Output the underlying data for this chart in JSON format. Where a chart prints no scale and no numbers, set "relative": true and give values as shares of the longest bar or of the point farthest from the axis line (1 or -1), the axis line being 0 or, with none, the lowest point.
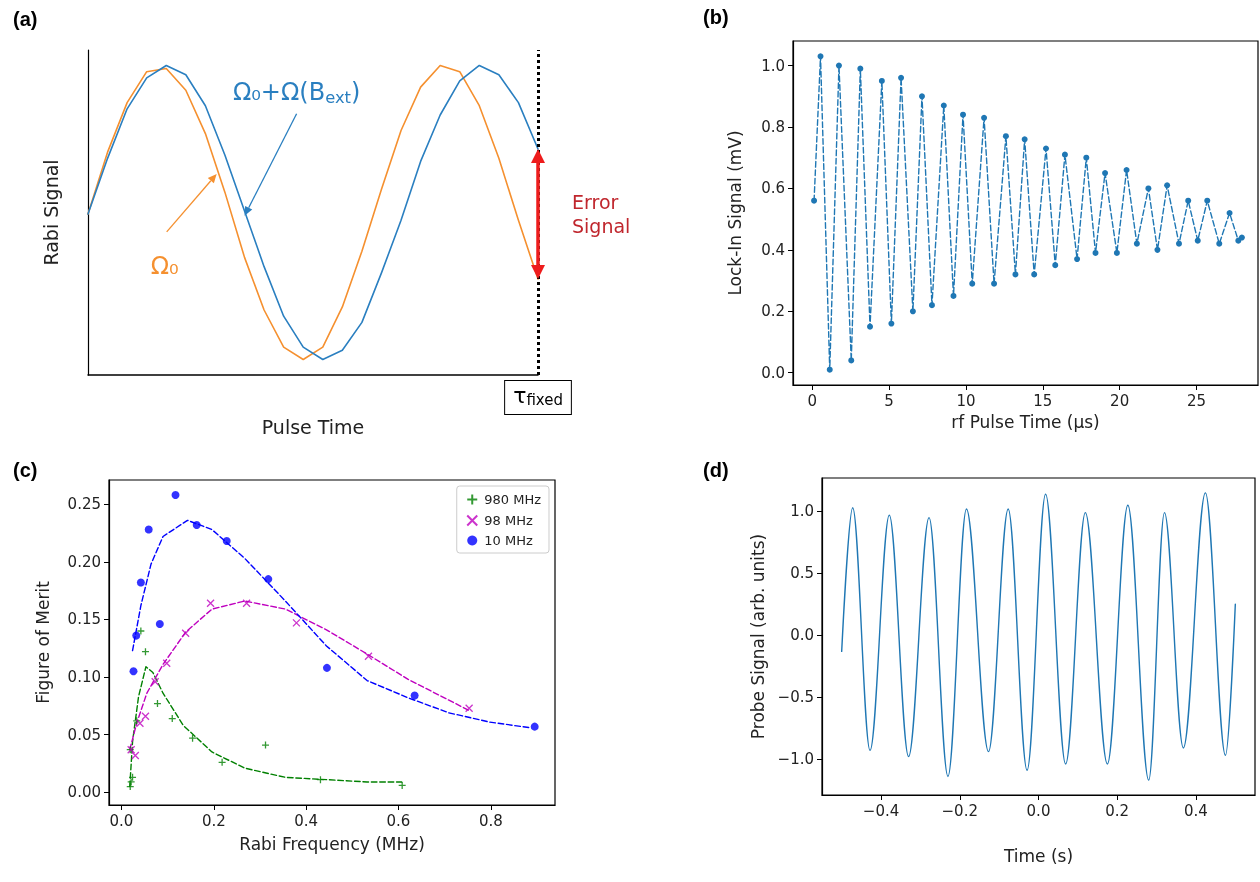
{
  "chart_data": [
    {
      "type": "line",
      "title": "(a)",
      "xlabel": "Pulse Time",
      "ylabel": "Rabi Signal",
      "relative": true,
      "grid": false,
      "marker": "none",
      "line_style": "solid",
      "categories": [
        null,
        null,
        null,
        null,
        null,
        null,
        null,
        null,
        null,
        null,
        null,
        null,
        null,
        null,
        null,
        null,
        null,
        null,
        null,
        null,
        null,
        null,
        null,
        null
      ],
      "series": [
        {
          "color": "#f5902f",
          "values": [
            0.52,
            0.72,
            0.88,
            0.98,
            0.99,
            0.92,
            0.78,
            0.59,
            0.38,
            0.21,
            0.09,
            0.05,
            0.09,
            0.22,
            0.4,
            0.6,
            0.79,
            0.93,
            1.0,
            0.98,
            0.87,
            0.7,
            0.5,
            0.31
          ]
        },
        {
          "color": "#2a7fc0",
          "values": [
            0.52,
            0.7,
            0.86,
            0.96,
            1.0,
            0.97,
            0.87,
            0.71,
            0.53,
            0.35,
            0.19,
            0.09,
            0.05,
            0.08,
            0.17,
            0.33,
            0.5,
            0.69,
            0.84,
            0.95,
            1.0,
            0.97,
            0.88,
            0.73
          ]
        }
      ],
      "ref_lines": [
        {
          "axis": "x",
          "label": "τ$_{fixed}$",
          "color": "#000000",
          "line_style": "dotted"
        }
      ],
      "annotations": [
        "Ω₀",
        "Ω₀+Ω(B$_{ext}$)",
        "Error Signal"
      ]
    },
    {
      "type": "line",
      "title": "(b)",
      "xlabel": "rf Pulse Time (μs)",
      "ylabel": "Lock-In Signal (mV)",
      "grid": false,
      "marker": "circle",
      "line_style": "dashed",
      "xlim": [
        -1.25,
        29
      ],
      "xticks": [
        0,
        5,
        10,
        15,
        20,
        25
      ],
      "ylim": [
        -0.04,
        1.08
      ],
      "yticks": [
        {
          "value": 0,
          "label": "0.0"
        },
        0.2,
        0.4,
        0.6,
        0.8,
        {
          "value": 1,
          "label": "1.0"
        }
      ],
      "x": [
        0.12,
        0.54,
        1.14,
        1.74,
        2.54,
        3.13,
        3.76,
        4.53,
        5.15,
        5.78,
        6.55,
        7.14,
        7.79,
        8.56,
        9.19,
        9.81,
        10.41,
        11.18,
        11.83,
        12.6,
        13.22,
        13.82,
        14.44,
        15.21,
        15.81,
        16.44,
        17.23,
        17.83,
        18.43,
        19.05,
        19.82,
        20.45,
        21.12,
        21.87,
        22.46,
        23.09,
        23.86,
        24.46,
        25.08,
        25.7,
        26.48,
        27.15,
        27.72,
        27.95
      ],
      "series": [
        {
          "color": "#1f77b4",
          "values": [
            0.56,
            1.03,
            0.01,
            1.0,
            0.04,
            0.99,
            0.15,
            0.95,
            0.16,
            0.96,
            0.2,
            0.9,
            0.22,
            0.87,
            0.25,
            0.84,
            0.29,
            0.83,
            0.29,
            0.77,
            0.32,
            0.76,
            0.32,
            0.73,
            0.35,
            0.71,
            0.37,
            0.7,
            0.39,
            0.65,
            0.39,
            0.66,
            0.42,
            0.6,
            0.4,
            0.61,
            0.42,
            0.56,
            0.43,
            0.56,
            0.42,
            0.52,
            0.43,
            0.44
          ]
        }
      ]
    },
    {
      "type": "scatter",
      "title": "(c)",
      "xlabel": "Rabi Frequency (MHz)",
      "ylabel": "Figure of Merit",
      "grid": false,
      "legend": "top right",
      "xlim": [
        -0.027,
        0.939
      ],
      "xticks": [
        {
          "value": 0,
          "label": "0.0"
        },
        0.2,
        0.4,
        0.6,
        0.8
      ],
      "ylim": [
        -0.011,
        0.271
      ],
      "yticks": [
        {
          "value": 0,
          "label": "0.00"
        },
        0.05,
        {
          "value": 0.1,
          "label": "0.10"
        },
        0.15,
        {
          "value": 0.2,
          "label": "0.20"
        },
        0.25
      ],
      "series": [
        {
          "name": "980 MHz",
          "color": "#008000",
          "marker": "cross",
          "x": [
            0.019,
            0.021,
            0.024,
            0.019,
            0.033,
            0.042,
            0.052,
            0.078,
            0.11,
            0.154,
            0.218,
            0.312,
            0.431,
            0.608
          ],
          "values": [
            0.005,
            0.009,
            0.013,
            0.037,
            0.062,
            0.14,
            0.122,
            0.077,
            0.064,
            0.047,
            0.026,
            0.041,
            0.011,
            0.006
          ]
        },
        {
          "name": "98 MHz",
          "color": "#bf00bf",
          "marker": "x",
          "x": [
            0.021,
            0.03,
            0.04,
            0.052,
            0.073,
            0.098,
            0.139,
            0.193,
            0.271,
            0.379,
            0.535,
            0.753
          ],
          "values": [
            0.037,
            0.032,
            0.06,
            0.066,
            0.096,
            0.112,
            0.138,
            0.164,
            0.164,
            0.147,
            0.118,
            0.073
          ]
        },
        {
          "name": "10 MHz",
          "color": "#0000ff",
          "marker": "circle",
          "x": [
            0.026,
            0.032,
            0.042,
            0.059,
            0.083,
            0.117,
            0.163,
            0.228,
            0.318,
            0.445,
            0.635,
            0.895
          ],
          "values": [
            0.105,
            0.136,
            0.182,
            0.228,
            0.146,
            0.258,
            0.232,
            0.218,
            0.185,
            0.108,
            0.084,
            0.057
          ]
        },
        {
          "type": "line",
          "color": "#008000",
          "marker": "none",
          "line_style": "dashed",
          "x": [
            0.018,
            0.024,
            0.037,
            0.053,
            0.068,
            0.09,
            0.134,
            0.196,
            0.267,
            0.355,
            0.444,
            0.532,
            0.607
          ],
          "values": [
            0.005,
            0.044,
            0.083,
            0.109,
            0.104,
            0.086,
            0.058,
            0.035,
            0.021,
            0.013,
            0.011,
            0.009,
            0.009
          ]
        },
        {
          "type": "line",
          "color": "#bf00bf",
          "marker": "none",
          "line_style": "dashed",
          "x": [
            0.018,
            0.033,
            0.055,
            0.09,
            0.139,
            0.196,
            0.267,
            0.355,
            0.444,
            0.532,
            0.621,
            0.753
          ],
          "values": [
            0.037,
            0.06,
            0.086,
            0.111,
            0.139,
            0.159,
            0.166,
            0.159,
            0.141,
            0.12,
            0.098,
            0.071
          ]
        },
        {
          "type": "line",
          "color": "#0000ff",
          "marker": "none",
          "line_style": "dashed",
          "x": [
            0.024,
            0.042,
            0.064,
            0.09,
            0.143,
            0.196,
            0.267,
            0.355,
            0.444,
            0.532,
            0.621,
            0.709,
            0.797,
            0.886
          ],
          "values": [
            0.123,
            0.162,
            0.198,
            0.222,
            0.236,
            0.228,
            0.203,
            0.166,
            0.127,
            0.097,
            0.082,
            0.069,
            0.061,
            0.056
          ]
        }
      ]
    },
    {
      "type": "line",
      "title": "(d)",
      "xlabel": "Time (s)",
      "ylabel": "Probe Signal (arb. units)",
      "grid": false,
      "marker": "none",
      "line_style": "solid",
      "xlim": [
        -0.55,
        0.55
      ],
      "xticks": [
        {
          "value": -0.4,
          "label": "−0.4"
        },
        {
          "value": -0.2,
          "label": "−0.2"
        },
        {
          "value": 0,
          "label": "0.0"
        },
        0.2,
        0.4
      ],
      "ylim": [
        -1.29,
        1.27
      ],
      "yticks": [
        {
          "value": -1,
          "label": "−1.0"
        },
        {
          "value": -0.5,
          "label": "−0.5"
        },
        {
          "value": 0,
          "label": "0.0"
        },
        0.5,
        {
          "value": 1,
          "label": "1.0"
        }
      ],
      "x": [
        -0.5,
        -0.472,
        -0.428,
        -0.379,
        -0.33,
        -0.278,
        -0.23,
        -0.183,
        -0.127,
        -0.077,
        -0.029,
        0.018,
        0.069,
        0.119,
        0.175,
        0.227,
        0.28,
        0.32,
        0.368,
        0.424,
        0.475,
        0.5
      ],
      "series": [
        {
          "color": "#1f77b4",
          "values": [
            -0.13,
            1.03,
            -0.93,
            0.97,
            -0.98,
            0.95,
            -1.14,
            1.02,
            -0.94,
            1.02,
            -1.09,
            1.14,
            -1.04,
            0.99,
            -1.04,
            1.05,
            -1.17,
            0.99,
            -0.91,
            1.15,
            -0.97,
            0.25
          ]
        }
      ]
    }
  ]
}
